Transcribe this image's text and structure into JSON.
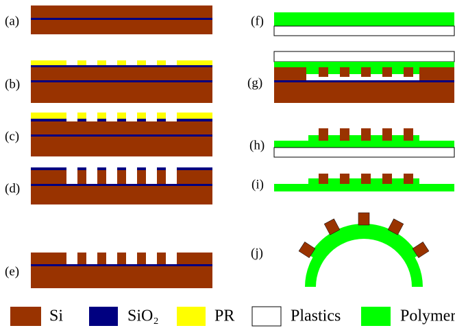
{
  "panels": [
    {
      "label": "(a)"
    },
    {
      "label": "(b)"
    },
    {
      "label": "(c)"
    },
    {
      "label": "(d)"
    },
    {
      "label": "(e)"
    },
    {
      "label": "(f)"
    },
    {
      "label": "(g)"
    },
    {
      "label": "(h)"
    },
    {
      "label": "(i)"
    },
    {
      "label": "(j)"
    }
  ],
  "legend": [
    {
      "name": "Si",
      "color": "#993300"
    },
    {
      "name": "SiO₂",
      "color": "#000080"
    },
    {
      "name": "PR",
      "color": "#ffff00"
    },
    {
      "name": "Plastics",
      "color": "#ffffff"
    },
    {
      "name": "Polymer",
      "color": "#00ff00"
    }
  ]
}
